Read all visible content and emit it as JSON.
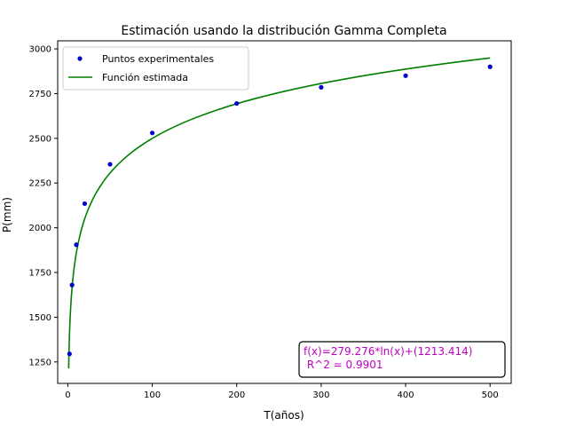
{
  "chart_data": {
    "type": "scatter",
    "title": "Estimación usando la distribución Gamma Completa",
    "xlabel": "T(años)",
    "ylabel": "P(mm)",
    "xlim": [
      -12,
      525
    ],
    "ylim": [
      1130,
      3045
    ],
    "xticks": [
      0,
      100,
      200,
      300,
      400,
      500
    ],
    "yticks": [
      1250,
      1500,
      1750,
      2000,
      2250,
      2500,
      2750,
      3000
    ],
    "grid": false,
    "legend_placement": "top-left",
    "series": [
      {
        "name": "Puntos experimentales",
        "kind": "scatter",
        "color": "#0000cc",
        "x": [
          2,
          5,
          10,
          20,
          50,
          100,
          200,
          300,
          400,
          500
        ],
        "y": [
          1295,
          1680,
          1905,
          2135,
          2355,
          2530,
          2695,
          2785,
          2850,
          2900
        ]
      },
      {
        "name": "Función estimada",
        "kind": "line",
        "color": "#008000",
        "function": "log",
        "a": 279.276,
        "b": 1213.414,
        "domain": [
          1,
          500
        ]
      }
    ],
    "annotation": {
      "line1": "f(x)=279.276*ln(x)+(1213.414)",
      "line2": " R^2 = 0.9901"
    }
  }
}
